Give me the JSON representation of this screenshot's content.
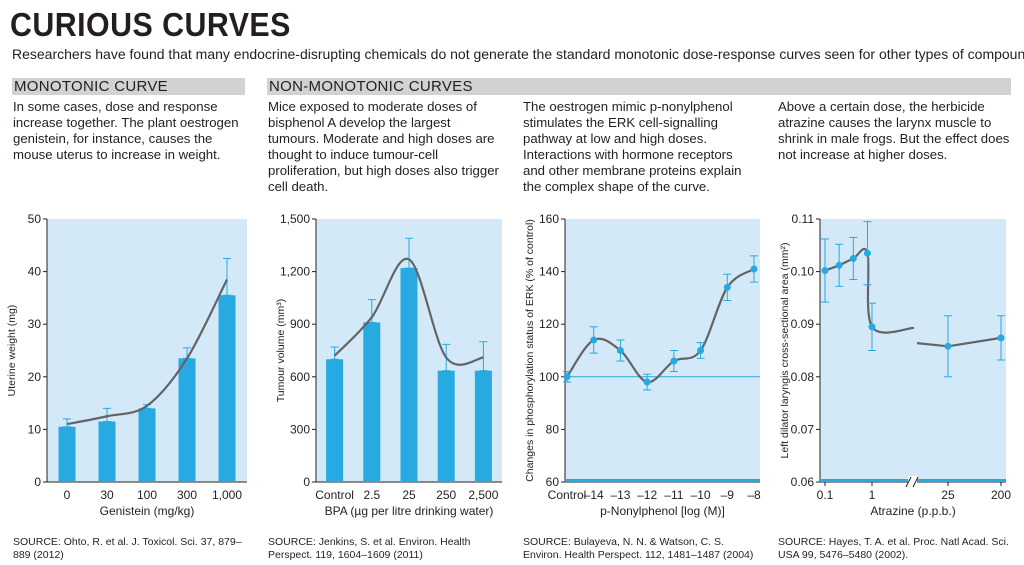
{
  "title": "CURIOUS CURVES",
  "subtitle": "Researchers have found that many endocrine-disrupting chemicals do not generate the standard monotonic dose-response curves seen for other types of compound.",
  "colors": {
    "plot_bg": "#d4e9f7",
    "bar": "#27a9e1",
    "curve": "#636466",
    "header_bg": "#d1d2d4",
    "ref_line": "#27a9e1"
  },
  "sections": {
    "monotonic": "MONOTONIC CURVE",
    "non_monotonic": "NON-MONOTONIC CURVES"
  },
  "panels": [
    {
      "description": "In some cases, dose and response increase together. The plant oestrogen genistein, for instance, causes the mouse uterus to increase in weight.",
      "source": "SOURCE: Ohto, R. et al. J. Toxicol. Sci. 37, 879–889 (2012)"
    },
    {
      "description": "Mice exposed to moderate doses of bisphenol A develop the largest tumours. Moderate and high doses are thought to induce tumour-cell proliferation, but high doses also trigger cell death.",
      "source": "SOURCE: Jenkins, S. et al. Environ. Health Perspect. 119, 1604–1609 (2011)"
    },
    {
      "description": "The oestrogen mimic p-nonylphenol stimulates the ERK cell-signalling pathway at low and high doses. Interactions with hormone receptors and other membrane proteins explain the complex shape of the curve.",
      "source": "SOURCE: Bulayeva, N. N. & Watson, C. S. Environ. Health Perspect. 112, 1481–1487 (2004)"
    },
    {
      "description": "Above a certain dose, the herbicide atrazine causes the larynx muscle to shrink in male frogs. But the effect does not increase at higher doses.",
      "source": "SOURCE: Hayes, T. A. et al. Proc. Natl Acad. Sci. USA 99, 5476–5480 (2002)."
    }
  ],
  "chart_data": [
    {
      "type": "bar",
      "categories": [
        "0",
        "30",
        "100",
        "300",
        "1,000"
      ],
      "values": [
        10.5,
        11.5,
        14,
        23.5,
        35.5
      ],
      "error": [
        1.5,
        2.5,
        0.7,
        2,
        7
      ],
      "curve": [
        11,
        12.5,
        14.5,
        23.5,
        38.5
      ],
      "xlabel": "Genistein (mg/kg)",
      "ylabel": "Uterine weight (mg)",
      "ylim": [
        0,
        50
      ],
      "yticks": [
        "0",
        "10",
        "20",
        "30",
        "40",
        "50"
      ],
      "grid": false
    },
    {
      "type": "bar",
      "categories": [
        "Control",
        "2.5",
        "25",
        "250",
        "2,500"
      ],
      "values": [
        700,
        910,
        1220,
        635,
        635
      ],
      "error": [
        70,
        130,
        170,
        150,
        165
      ],
      "curve": [
        720,
        940,
        1270,
        710,
        710
      ],
      "xlabel": "BPA (µg per litre drinking water)",
      "ylabel": "Tumour volume (mm³)",
      "ylim": [
        0,
        1500
      ],
      "yticks": [
        "0",
        "300",
        "600",
        "900",
        "1,200",
        "1,500"
      ],
      "grid": false
    },
    {
      "type": "line",
      "categories": [
        "Control",
        "–14",
        "–13",
        "–12",
        "–11",
        "–10",
        "–9",
        "–8"
      ],
      "values": [
        100,
        114,
        110,
        98,
        106,
        110,
        134,
        141
      ],
      "error": [
        2,
        5,
        4,
        3,
        4,
        3,
        5,
        5
      ],
      "xlabel": "p-Nonylphenol [log (M)]",
      "ylabel": "Changes in phosphorylation status of ERK (% of control)",
      "ylim": [
        60,
        160
      ],
      "yticks": [
        "60",
        "80",
        "100",
        "120",
        "140",
        "160"
      ],
      "reference_line": 100,
      "grid": false
    },
    {
      "type": "line",
      "x": [
        0.1,
        0.2,
        0.4,
        0.8,
        1,
        25,
        200
      ],
      "xticks": [
        "0.1",
        "1",
        "25",
        "200"
      ],
      "values": [
        0.1002,
        0.1012,
        0.1025,
        0.1035,
        0.0895,
        0.0858,
        0.0874
      ],
      "error": [
        0.006,
        0.004,
        0.004,
        0.006,
        0.0045,
        0.0058,
        0.0042
      ],
      "xlabel": "Atrazine (p.p.b.)",
      "ylabel": "Left dilator laryngis cross-sectional area (mm²)",
      "ylim": [
        0.06,
        0.11
      ],
      "yticks": [
        "0.06",
        "0.07",
        "0.08",
        "0.09",
        "0.10",
        "0.11"
      ],
      "axis_break": true,
      "grid": false
    }
  ]
}
